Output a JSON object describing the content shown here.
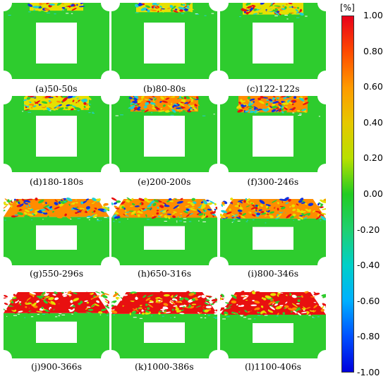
{
  "colorbar": {
    "unit": "[%]",
    "ticks": [
      "1.00",
      "0.80",
      "0.60",
      "0.40",
      "0.20",
      "0.00",
      "-0.20",
      "-0.40",
      "-0.60",
      "-0.80",
      "-1.00"
    ]
  },
  "panels": [
    {
      "caption": "(a)50-50s",
      "damage_level": 0.05,
      "hole": "closed"
    },
    {
      "caption": "(b)80-80s",
      "damage_level": 0.15,
      "hole": "closed"
    },
    {
      "caption": "(c)122-122s",
      "damage_level": 0.3,
      "hole": "closed"
    },
    {
      "caption": "(d)180-180s",
      "damage_level": 0.45,
      "hole": "closed"
    },
    {
      "caption": "(e)200-200s",
      "damage_level": 0.55,
      "hole": "closed"
    },
    {
      "caption": "(f)300-246s",
      "damage_level": 0.6,
      "hole": "closed"
    },
    {
      "caption": "(g)550-296s",
      "damage_level": 0.7,
      "hole": "open"
    },
    {
      "caption": "(h)650-316s",
      "damage_level": 0.75,
      "hole": "open"
    },
    {
      "caption": "(i)800-346s",
      "damage_level": 0.8,
      "hole": "open"
    },
    {
      "caption": "(j)900-366s",
      "damage_level": 0.9,
      "hole": "open"
    },
    {
      "caption": "(k)1000-386s",
      "damage_level": 0.95,
      "hole": "open"
    },
    {
      "caption": "(l)1100-406s",
      "damage_level": 1.0,
      "hole": "open"
    }
  ],
  "colors": {
    "green": "#2ecc2e",
    "red": "#e81010",
    "orange": "#ff8c00",
    "yellow": "#e6e000",
    "cyan": "#20d0d0",
    "blue": "#1030e0",
    "white": "#ffffff"
  }
}
